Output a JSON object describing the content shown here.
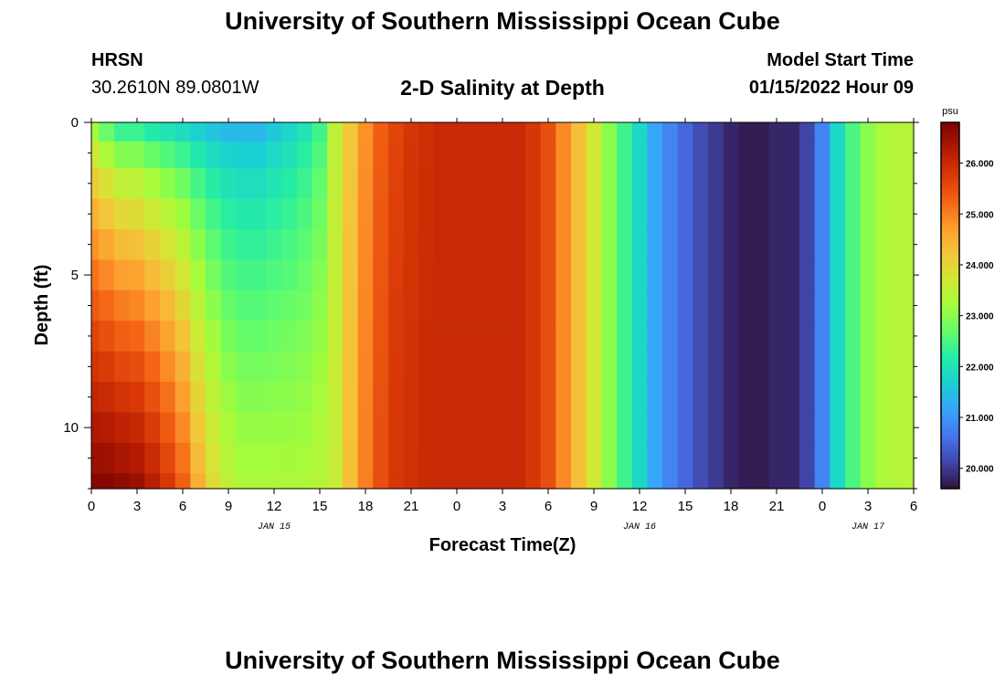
{
  "header": {
    "title": "University of Southern Mississippi Ocean Cube",
    "station": "HRSN",
    "coords": "30.2610N  89.0801W",
    "plot_title": "2-D Salinity at Depth",
    "start_label": "Model Start Time",
    "start_value": "01/15/2022 Hour 09"
  },
  "footer": {
    "title": "University of Southern Mississippi Ocean Cube"
  },
  "chart_data": {
    "type": "heatmap",
    "title": "2-D Salinity at Depth",
    "xlabel": "Forecast Time(Z)",
    "ylabel": "Depth (ft)",
    "x_range_hours": [
      0,
      54
    ],
    "y_range_ft": [
      0,
      12
    ],
    "y_inverted": true,
    "x_tick_labels": [
      "0",
      "3",
      "6",
      "9",
      "12",
      "15",
      "18",
      "21",
      "0",
      "3",
      "6",
      "9",
      "12",
      "15",
      "18",
      "21",
      "0",
      "3",
      "6"
    ],
    "y_tick_labels": [
      "0",
      "5",
      "10"
    ],
    "date_labels": [
      {
        "text": "JAN 15",
        "hour": 12
      },
      {
        "text": "JAN 16",
        "hour": 36
      },
      {
        "text": "JAN 17",
        "hour": 51
      }
    ],
    "colorbar": {
      "unit": "psu",
      "range": [
        19.6,
        26.8
      ],
      "tick_labels": [
        "20.000",
        "21.000",
        "22.000",
        "23.000",
        "24.000",
        "25.000",
        "26.000"
      ],
      "tick_values": [
        20,
        21,
        22,
        23,
        24,
        25,
        26
      ]
    },
    "colormap": [
      "#30123b",
      "#4145ab",
      "#4675ed",
      "#39a2fc",
      "#1bcfd4",
      "#24eca6",
      "#61fc6c",
      "#a4fc3b",
      "#d1e834",
      "#f3c63a",
      "#fe9b2d",
      "#f36315",
      "#d93806",
      "#b11901",
      "#7a0402"
    ],
    "depth_levels_ft": [
      0.25,
      1,
      2,
      3,
      4,
      5,
      6,
      7,
      8,
      9,
      10,
      11,
      12
    ],
    "profile_hours": [
      0,
      1,
      2,
      3,
      4,
      5,
      6,
      7,
      8,
      9,
      10,
      11,
      12,
      13,
      14,
      15,
      16,
      17,
      18,
      19,
      20,
      21,
      22,
      23,
      24,
      25,
      26,
      27,
      28,
      29,
      30,
      31,
      32,
      33,
      34,
      35,
      36,
      37,
      38,
      39,
      40,
      41,
      42,
      43,
      44,
      45,
      46,
      47,
      48,
      49,
      50,
      51,
      52,
      53,
      54
    ],
    "surface_salinity": [
      22.8,
      22.3,
      21.9,
      21.9,
      21.7,
      21.6,
      21.5,
      21.4,
      21.3,
      21.2,
      21.2,
      21.2,
      21.4,
      21.6,
      21.9,
      22.3,
      23.5,
      24.2,
      24.8,
      25.3,
      25.6,
      25.8,
      25.9,
      26.0,
      26.0,
      26.0,
      26.0,
      26.0,
      26.0,
      25.8,
      25.5,
      24.9,
      24.3,
      23.7,
      23.0,
      22.4,
      21.8,
      21.2,
      20.8,
      20.5,
      20.2,
      20.0,
      19.8,
      19.7,
      19.7,
      19.8,
      19.8,
      20.1,
      20.8,
      21.8,
      22.5,
      23.0,
      23.3,
      23.4,
      23.4
    ],
    "bottom_salinity": [
      26.7,
      26.7,
      26.6,
      26.5,
      26.2,
      25.8,
      25.3,
      24.5,
      23.9,
      23.5,
      23.3,
      23.3,
      23.3,
      23.3,
      23.3,
      23.4,
      23.6,
      24.3,
      25.0,
      25.5,
      25.8,
      25.9,
      26.0,
      26.0,
      26.0,
      26.0,
      26.0,
      26.0,
      26.0,
      25.8,
      25.5,
      24.9,
      24.3,
      23.7,
      23.0,
      22.4,
      21.8,
      21.2,
      20.8,
      20.5,
      20.2,
      20.0,
      19.8,
      19.7,
      19.7,
      19.8,
      19.8,
      20.1,
      20.8,
      21.8,
      22.5,
      23.0,
      23.3,
      23.4,
      23.4
    ]
  }
}
